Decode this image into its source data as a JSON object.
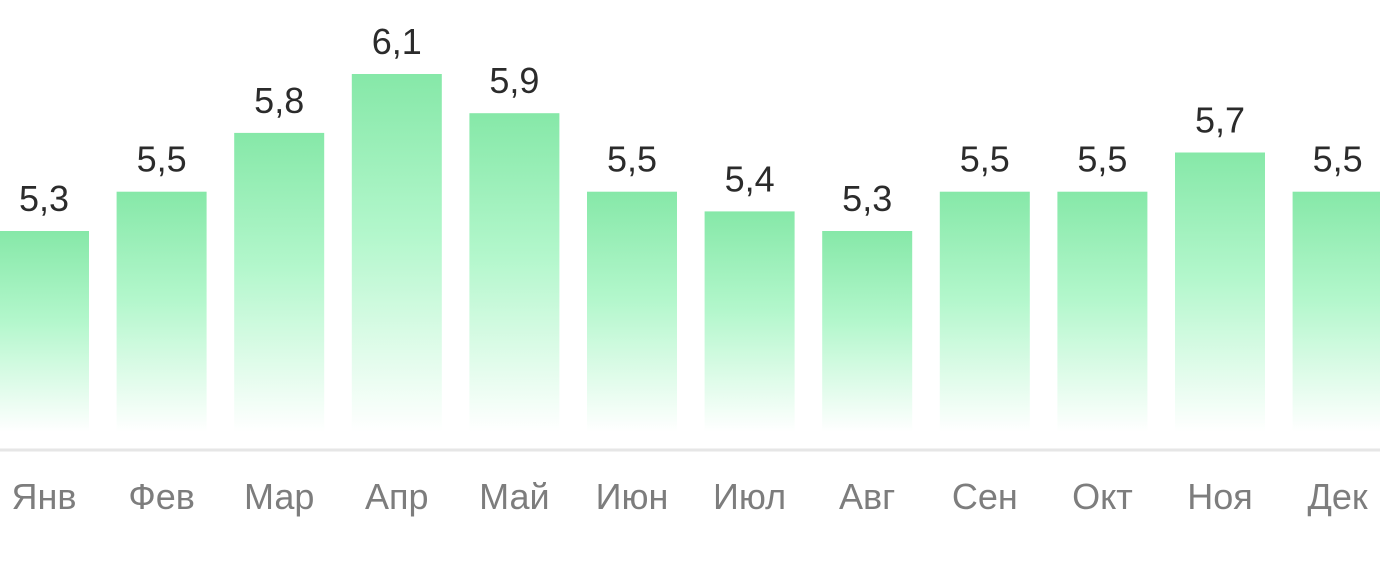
{
  "chart_data": {
    "type": "bar",
    "categories": [
      "Янв",
      "Фев",
      "Мар",
      "Апр",
      "Май",
      "Июн",
      "Июл",
      "Авг",
      "Сен",
      "Окт",
      "Ноя",
      "Дек"
    ],
    "values": [
      5.3,
      5.5,
      5.8,
      6.1,
      5.9,
      5.5,
      5.4,
      5.3,
      5.5,
      5.5,
      5.7,
      5.5
    ],
    "value_labels": [
      "5,3",
      "5,5",
      "5,8",
      "6,1",
      "5,9",
      "5,5",
      "5,4",
      "5,3",
      "5,5",
      "5,5",
      "5,7",
      "5,5"
    ],
    "title": "",
    "xlabel": "",
    "ylabel": "",
    "grid": false,
    "legend": "none",
    "colors": {
      "bar_top": "#86e8a8",
      "bar_bottom": "#ffffff",
      "baseline": "#e6e6e6",
      "value_text": "#2b2b2b",
      "tick_text": "#7d7d7d"
    }
  }
}
